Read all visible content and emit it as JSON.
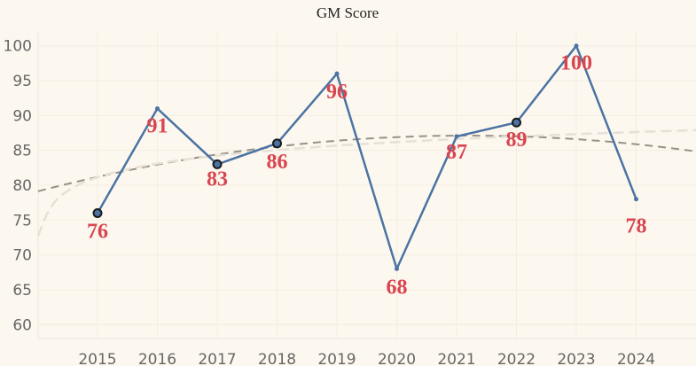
{
  "chart_data": {
    "type": "line",
    "title": "GM Score",
    "xlabel": "",
    "ylabel": "",
    "x": [
      "2015",
      "2016",
      "2017",
      "2018",
      "2019",
      "2020",
      "2021",
      "2022",
      "2023",
      "2024"
    ],
    "values": [
      76,
      91,
      83,
      86,
      96,
      68,
      87,
      89,
      100,
      78
    ],
    "highlighted_points": [
      "2015",
      "2017",
      "2018",
      "2022"
    ],
    "yticks": [
      60,
      65,
      70,
      75,
      80,
      85,
      90,
      95,
      100
    ],
    "ylim": [
      58,
      102
    ],
    "trendlines": [
      {
        "kind": "polynomial",
        "style": "dashed",
        "color": "#999189"
      },
      {
        "kind": "logarithmic",
        "style": "dashed",
        "color": "#e6e0d6"
      }
    ],
    "grid": true,
    "colors": {
      "series": "#4b73a3",
      "labels": "#d9454f",
      "background": "#fdf8ef"
    }
  }
}
